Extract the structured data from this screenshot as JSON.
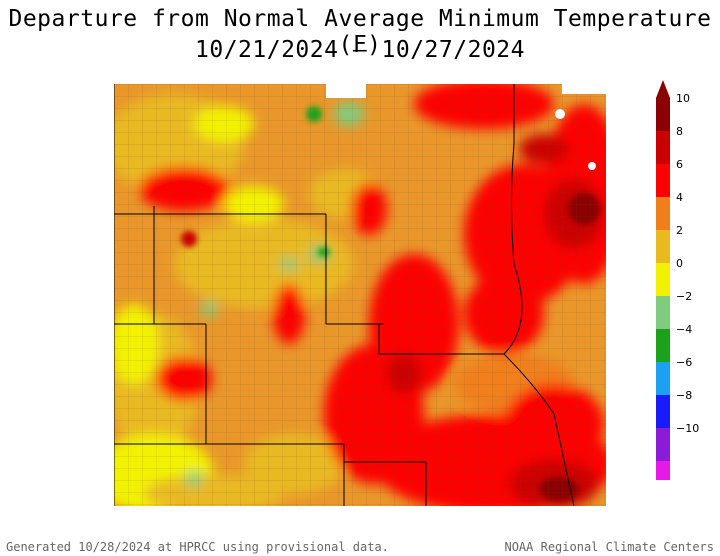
{
  "title": {
    "line1": "Departure from Normal Average Minimum Temperature (F)",
    "line2": "10/21/2024 – 10/27/2024"
  },
  "legend": {
    "labels": [
      "10",
      "8",
      "6",
      "4",
      "2",
      "0",
      "−2",
      "−4",
      "−6",
      "−8",
      "−10"
    ],
    "colors": {
      "p10": "#8b0000",
      "p8": "#cc0000",
      "p6": "#ff0000",
      "p4": "#f07f1b",
      "p2": "#e9b920",
      "p0": "#f2f200",
      "n0": "#7fcc7f",
      "n2": "#1aa31a",
      "n4": "#1ca0f2",
      "n6": "#1a1aff",
      "n8": "#8c1ad9",
      "n10": "#e61ae6"
    }
  },
  "footer": {
    "left": "Generated 10/28/2024 at HPRCC using provisional data.",
    "right": "NOAA Regional Climate Centers"
  }
}
